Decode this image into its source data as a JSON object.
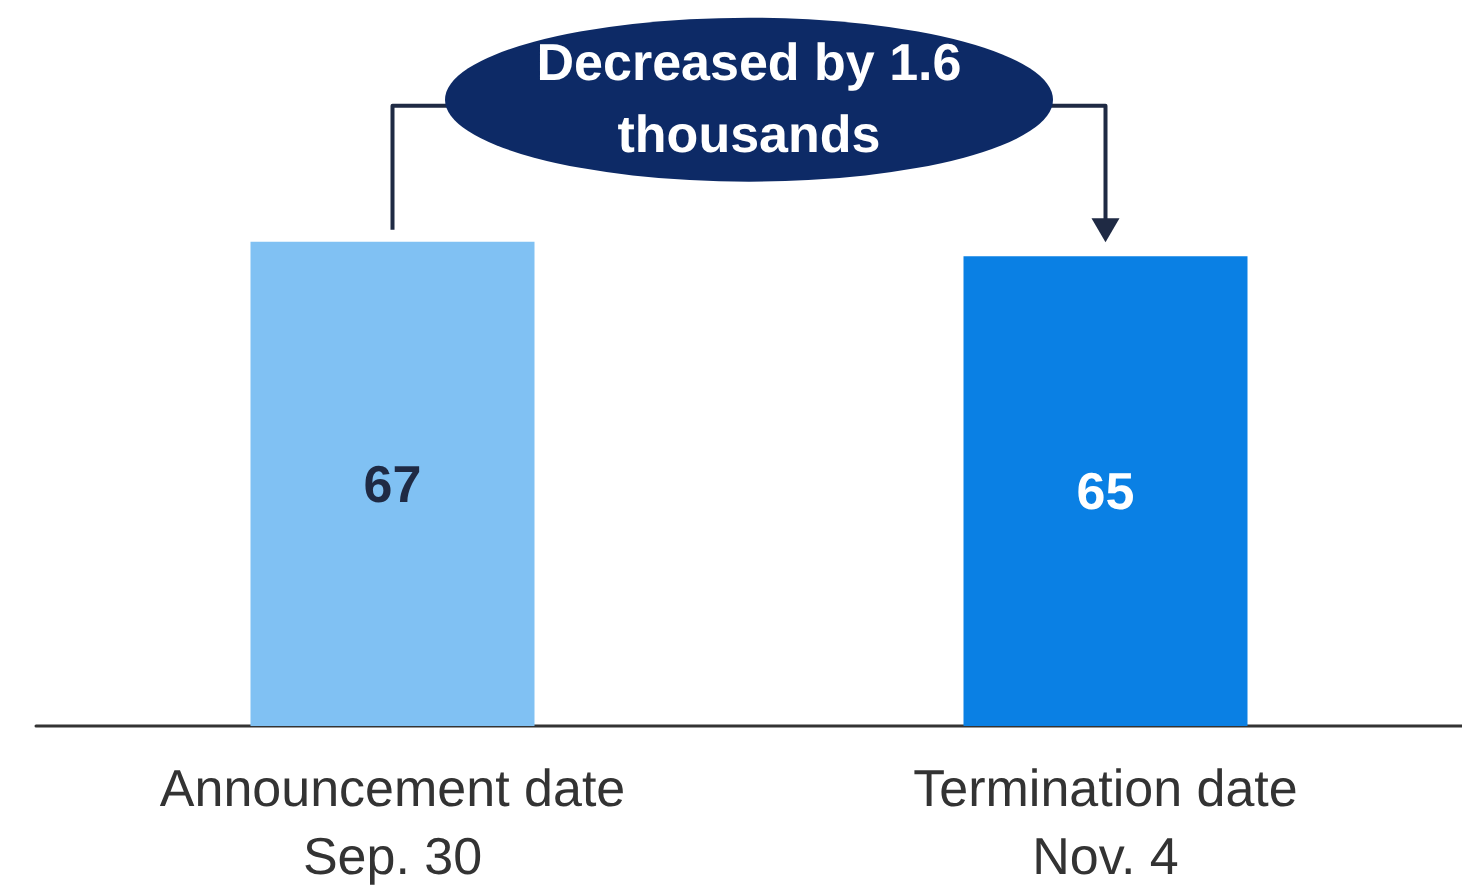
{
  "chart_data": {
    "type": "bar",
    "categories": [
      "Announcement date\nSep. 30",
      "Termination date\nNov. 4"
    ],
    "values": [
      67,
      65
    ],
    "colors": [
      "#80c1f3",
      "#0a80e4"
    ],
    "data_labels": true,
    "annotations": [
      "Decreased by 1.6 thousands"
    ]
  }
}
